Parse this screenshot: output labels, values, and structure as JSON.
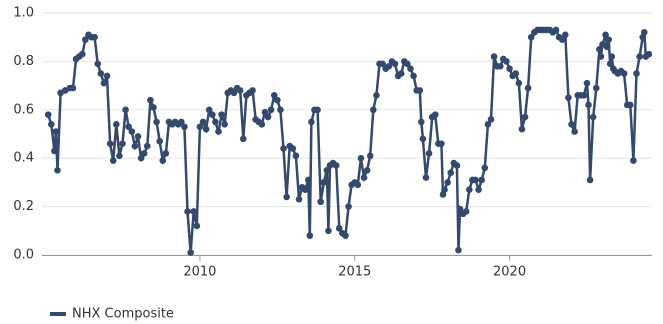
{
  "chart_data": {
    "type": "line",
    "x": [
      2005.1,
      2005.2,
      2005.3,
      2005.35,
      2005.4,
      2005.5,
      2005.65,
      2005.8,
      2005.9,
      2006.0,
      2006.1,
      2006.2,
      2006.3,
      2006.4,
      2006.5,
      2006.6,
      2006.7,
      2006.8,
      2006.9,
      2007.0,
      2007.1,
      2007.2,
      2007.3,
      2007.4,
      2007.5,
      2007.6,
      2007.7,
      2007.8,
      2007.9,
      2008.0,
      2008.1,
      2008.2,
      2008.3,
      2008.4,
      2008.5,
      2008.6,
      2008.7,
      2008.8,
      2008.9,
      2009.0,
      2009.1,
      2009.2,
      2009.3,
      2009.4,
      2009.5,
      2009.6,
      2009.7,
      2009.8,
      2009.9,
      2010.0,
      2010.1,
      2010.2,
      2010.3,
      2010.4,
      2010.5,
      2010.6,
      2010.7,
      2010.8,
      2010.9,
      2011.0,
      2011.1,
      2011.2,
      2011.3,
      2011.4,
      2011.5,
      2011.6,
      2011.7,
      2011.8,
      2011.9,
      2012.0,
      2012.1,
      2012.2,
      2012.3,
      2012.4,
      2012.5,
      2012.6,
      2012.7,
      2012.8,
      2012.9,
      2013.0,
      2013.1,
      2013.2,
      2013.3,
      2013.4,
      2013.5,
      2013.55,
      2013.6,
      2013.7,
      2013.8,
      2013.9,
      2014.0,
      2014.1,
      2014.15,
      2014.2,
      2014.3,
      2014.4,
      2014.5,
      2014.6,
      2014.7,
      2014.8,
      2014.9,
      2015.0,
      2015.1,
      2015.2,
      2015.3,
      2015.4,
      2015.5,
      2015.6,
      2015.7,
      2015.8,
      2015.9,
      2016.0,
      2016.1,
      2016.2,
      2016.3,
      2016.4,
      2016.5,
      2016.6,
      2016.7,
      2016.8,
      2016.9,
      2017.0,
      2017.1,
      2017.15,
      2017.2,
      2017.3,
      2017.4,
      2017.5,
      2017.6,
      2017.7,
      2017.8,
      2017.85,
      2017.9,
      2018.0,
      2018.1,
      2018.2,
      2018.3,
      2018.35,
      2018.4,
      2018.5,
      2018.6,
      2018.7,
      2018.8,
      2018.9,
      2019.0,
      2019.1,
      2019.2,
      2019.3,
      2019.4,
      2019.5,
      2019.6,
      2019.7,
      2019.8,
      2019.9,
      2020.0,
      2020.1,
      2020.2,
      2020.3,
      2020.4,
      2020.5,
      2020.6,
      2020.7,
      2020.8,
      2020.9,
      2021.0,
      2021.1,
      2021.2,
      2021.3,
      2021.4,
      2021.5,
      2021.6,
      2021.7,
      2021.8,
      2021.9,
      2022.0,
      2022.1,
      2022.2,
      2022.3,
      2022.4,
      2022.5,
      2022.55,
      2022.6,
      2022.7,
      2022.8,
      2022.9,
      2022.95,
      2023.0,
      2023.1,
      2023.15,
      2023.2,
      2023.25,
      2023.3,
      2023.35,
      2023.4,
      2023.5,
      2023.6,
      2023.7,
      2023.8,
      2023.9,
      2024.0,
      2024.1,
      2024.2,
      2024.3,
      2024.35,
      2024.4,
      2024.5
    ],
    "series": [
      {
        "name": "NHX Composite",
        "color": "#34496b",
        "values": [
          0.58,
          0.54,
          0.43,
          0.51,
          0.35,
          0.67,
          0.68,
          0.69,
          0.69,
          0.81,
          0.82,
          0.83,
          0.89,
          0.91,
          0.9,
          0.9,
          0.79,
          0.75,
          0.71,
          0.74,
          0.46,
          0.39,
          0.54,
          0.41,
          0.46,
          0.6,
          0.53,
          0.51,
          0.45,
          0.49,
          0.4,
          0.42,
          0.45,
          0.64,
          0.61,
          0.55,
          0.47,
          0.39,
          0.42,
          0.55,
          0.54,
          0.55,
          0.54,
          0.55,
          0.53,
          0.18,
          0.01,
          0.18,
          0.12,
          0.53,
          0.55,
          0.52,
          0.6,
          0.58,
          0.55,
          0.51,
          0.58,
          0.54,
          0.67,
          0.68,
          0.67,
          0.69,
          0.68,
          0.48,
          0.66,
          0.67,
          0.68,
          0.56,
          0.55,
          0.54,
          0.59,
          0.57,
          0.6,
          0.66,
          0.64,
          0.6,
          0.44,
          0.24,
          0.45,
          0.44,
          0.41,
          0.23,
          0.28,
          0.27,
          0.31,
          0.08,
          0.55,
          0.6,
          0.6,
          0.22,
          0.3,
          0.35,
          0.1,
          0.37,
          0.38,
          0.37,
          0.11,
          0.09,
          0.08,
          0.2,
          0.29,
          0.3,
          0.29,
          0.4,
          0.32,
          0.35,
          0.41,
          0.6,
          0.66,
          0.79,
          0.79,
          0.77,
          0.78,
          0.8,
          0.79,
          0.74,
          0.75,
          0.8,
          0.79,
          0.77,
          0.74,
          0.68,
          0.68,
          0.55,
          0.48,
          0.32,
          0.42,
          0.57,
          0.58,
          0.46,
          0.46,
          0.25,
          0.27,
          0.3,
          0.34,
          0.38,
          0.37,
          0.02,
          0.19,
          0.17,
          0.18,
          0.27,
          0.31,
          0.31,
          0.27,
          0.31,
          0.36,
          0.54,
          0.56,
          0.82,
          0.78,
          0.78,
          0.81,
          0.8,
          0.77,
          0.74,
          0.75,
          0.71,
          0.52,
          0.57,
          0.69,
          0.9,
          0.92,
          0.93,
          0.93,
          0.93,
          0.93,
          0.93,
          0.92,
          0.93,
          0.9,
          0.89,
          0.91,
          0.65,
          0.54,
          0.51,
          0.66,
          0.66,
          0.66,
          0.71,
          0.62,
          0.31,
          0.57,
          0.69,
          0.85,
          0.82,
          0.87,
          0.91,
          0.86,
          0.89,
          0.79,
          0.82,
          0.77,
          0.76,
          0.75,
          0.76,
          0.75,
          0.62,
          0.62,
          0.39,
          0.75,
          0.82,
          0.9,
          0.92,
          0.82,
          0.83
        ]
      }
    ],
    "xlim": [
      2004.9,
      2024.6
    ],
    "xticks": [
      2010,
      2015,
      2020
    ],
    "ylim": [
      0,
      1
    ],
    "yticks": [
      {
        "value": 0,
        "label": "0.0"
      },
      0.2,
      0.4,
      0.6,
      0.8,
      {
        "value": 1,
        "label": "1.0"
      }
    ],
    "grid": true,
    "legend": "bottom-left"
  }
}
